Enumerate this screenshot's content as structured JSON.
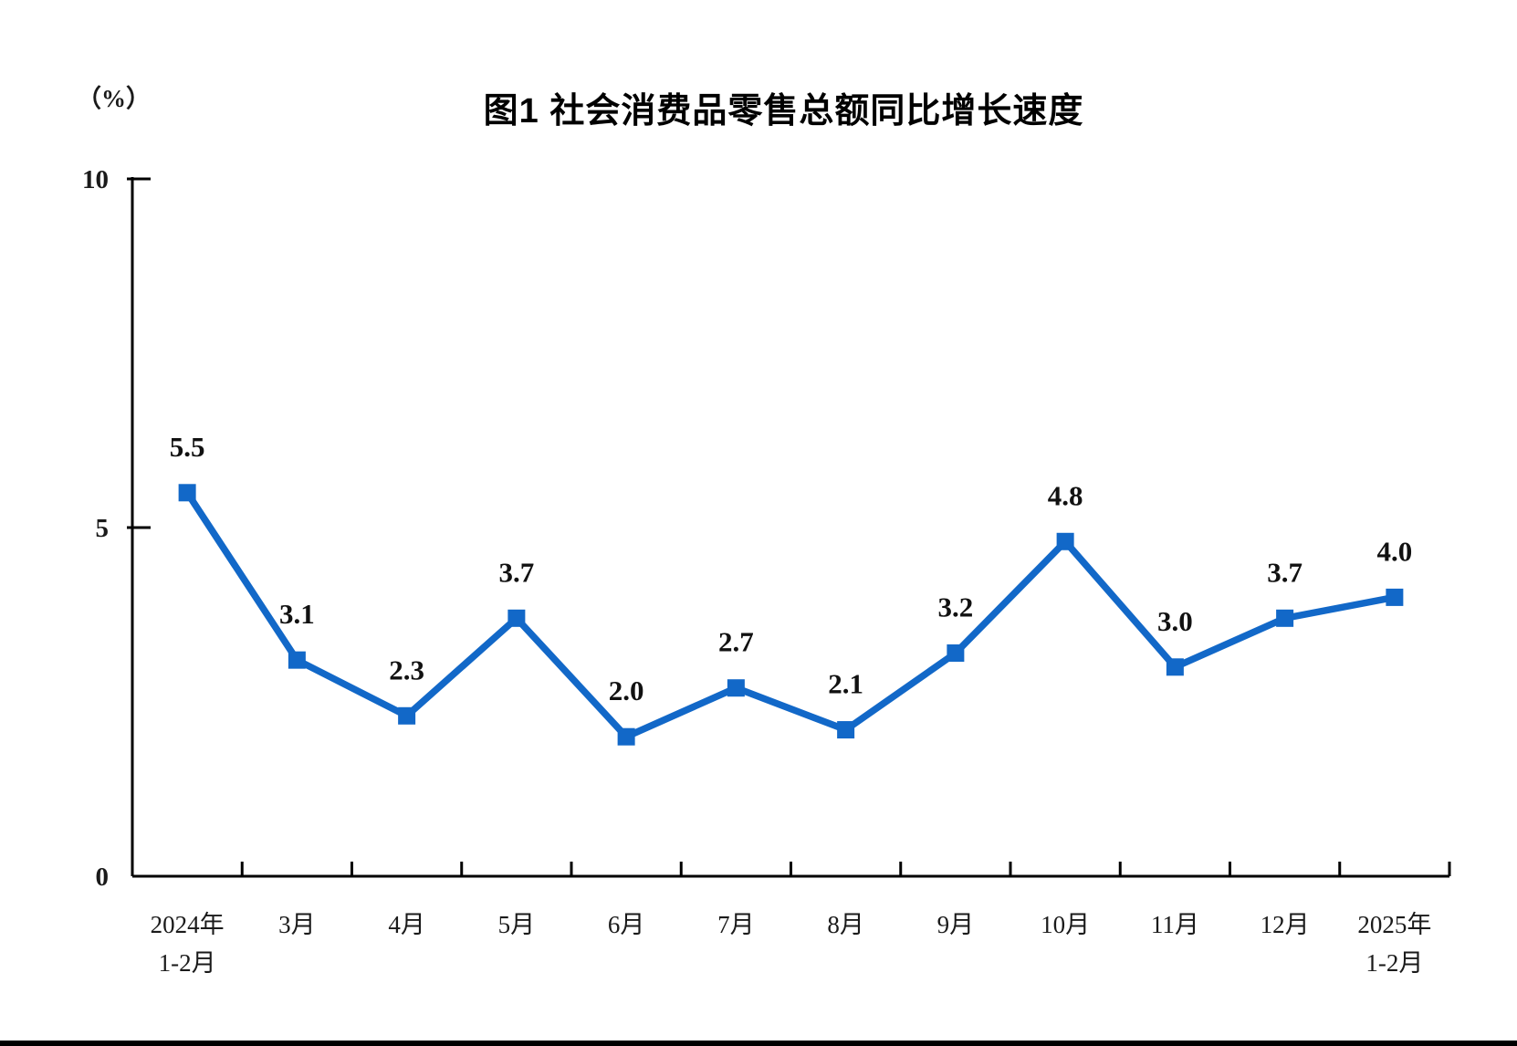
{
  "chart_data": {
    "type": "line",
    "title": "图1 社会消费品零售总额同比增长速度",
    "ylabel": "（%）",
    "categories": [
      "2024年\n1-2月",
      "3月",
      "4月",
      "5月",
      "6月",
      "7月",
      "8月",
      "9月",
      "10月",
      "11月",
      "12月",
      "2025年\n1-2月"
    ],
    "values": [
      5.5,
      3.1,
      2.3,
      3.7,
      2.0,
      2.7,
      2.1,
      3.2,
      4.8,
      3.0,
      3.7,
      4.0
    ],
    "series_name": "社会消费品零售总额同比增长速度",
    "y_ticks": [
      0,
      5,
      10
    ],
    "ylim": [
      0,
      10
    ],
    "grid": false,
    "legend": "none",
    "line_color": "#1268C8",
    "marker": "square",
    "axis_color": "#000000",
    "label_color": "#111111"
  }
}
